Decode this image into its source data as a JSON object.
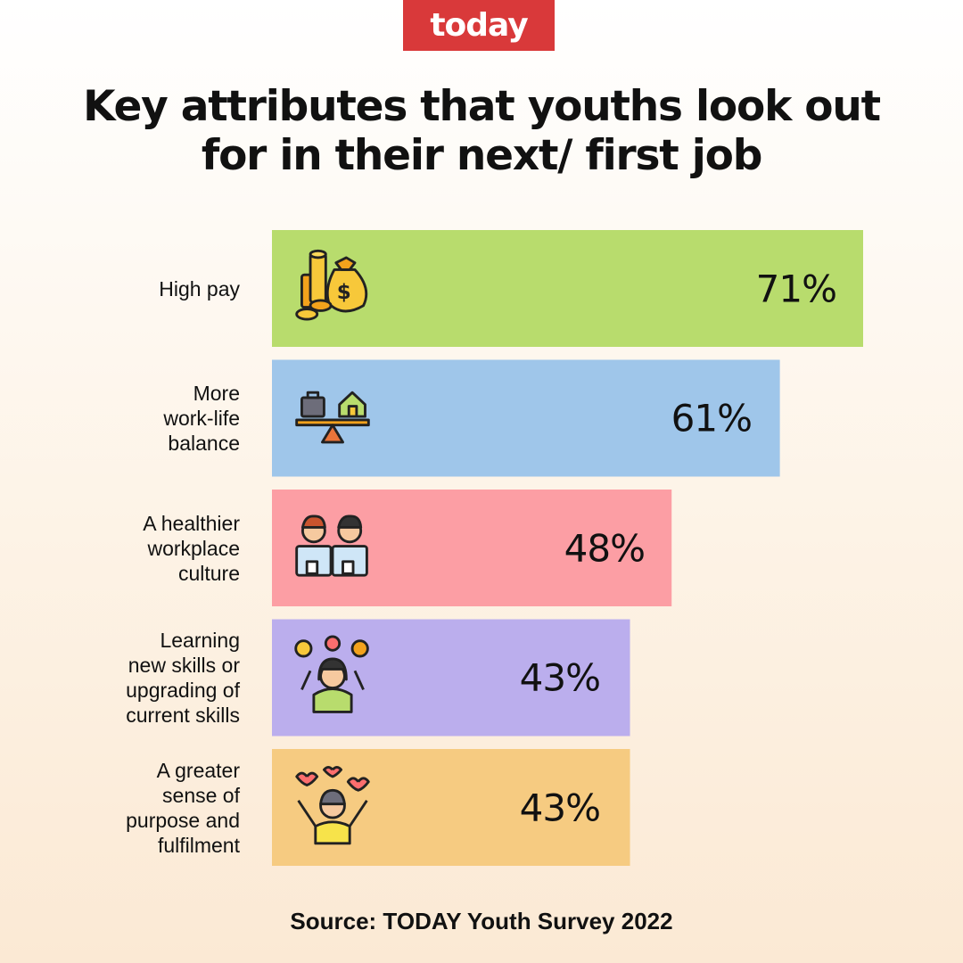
{
  "logo": {
    "text": "today",
    "color": "#d9393a"
  },
  "title": "Key attributes that youths look out for in their next/ first job",
  "source": "Source: TODAY Youth Survey 2022",
  "chart_data": {
    "type": "bar",
    "orientation": "horizontal",
    "title": "Key attributes that youths look out for in their next/ first job",
    "categories": [
      "High pay",
      "More work-life balance",
      "A healthier workplace culture",
      "Learning new skills or upgrading of current skills",
      "A greater sense of purpose and fulfilment"
    ],
    "category_lines": [
      [
        "High pay"
      ],
      [
        "More",
        "work-life",
        "balance"
      ],
      [
        "A healthier",
        "workplace",
        "culture"
      ],
      [
        "Learning",
        "new skills or",
        "upgrading of",
        "current skills"
      ],
      [
        "A greater",
        "sense of",
        "purpose and",
        "fulfilment"
      ]
    ],
    "values": [
      71,
      61,
      48,
      43,
      43
    ],
    "value_labels": [
      "71%",
      "61%",
      "48%",
      "43%",
      "43%"
    ],
    "colors": [
      "#b8dc6d",
      "#9fc6ea",
      "#fc9ea4",
      "#bbaeed",
      "#f6cb81"
    ],
    "icons": [
      "money-bag-icon",
      "work-life-balance-icon",
      "coworkers-icon",
      "learning-skills-icon",
      "happy-person-icon"
    ],
    "xlim": [
      0,
      71
    ],
    "unit": "%",
    "grid": false,
    "legend": "none"
  }
}
